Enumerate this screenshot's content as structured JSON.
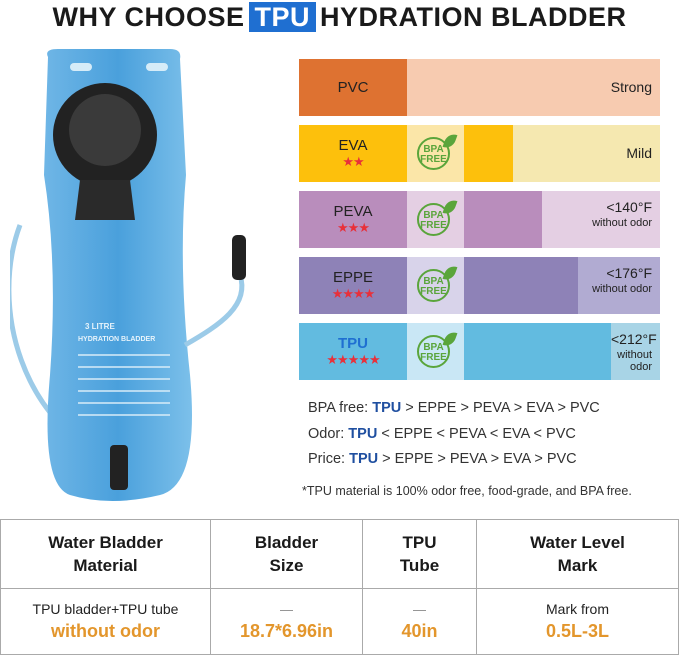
{
  "title": {
    "before": "WHY CHOOSE",
    "highlight": "TPU",
    "after": "HYDRATION BLADDER"
  },
  "product": {
    "label_line1": "3 LITRE",
    "label_line2": "HYDRATION BLADDER"
  },
  "colors": {
    "accent": "#1f6fd1",
    "star": "#e8303a",
    "bpa_green": "#5aa53b",
    "orange": "#e3962c"
  },
  "materials": [
    {
      "name": "PVC",
      "stars": "",
      "bpa_free": false,
      "value": "Strong",
      "subvalue": "",
      "dark": "#de7231",
      "light": "#f7cbb0",
      "mid": "#f7cbb0",
      "level": 0
    },
    {
      "name": "EVA",
      "stars": "★★",
      "bpa_free": true,
      "bpa_text1": "BPA",
      "bpa_text2": "FREE",
      "value": "Mild",
      "subvalue": "",
      "dark": "#fdc00c",
      "light": "#f5e8b0",
      "mid": "#fbe6a8",
      "level": 25
    },
    {
      "name": "PEVA",
      "stars": "★★★",
      "bpa_free": true,
      "bpa_text1": "BPA",
      "bpa_text2": "FREE",
      "value": "<140°F",
      "subvalue": "without odor",
      "dark": "#b98dbc",
      "light": "#e4cfe3",
      "mid": "#e4cfe3",
      "level": 40
    },
    {
      "name": "EPPE",
      "stars": "★★★★",
      "bpa_free": true,
      "bpa_text1": "BPA",
      "bpa_text2": "FREE",
      "value": "<176°F",
      "subvalue": "without odor",
      "dark": "#8e82b7",
      "light": "#b1abd2",
      "mid": "#d8d3ea",
      "level": 58
    },
    {
      "name": "TPU",
      "stars": "★★★★★",
      "bpa_free": true,
      "bpa_text1": "BPA",
      "bpa_text2": "FREE",
      "value": "<212°F",
      "subvalue": "without odor",
      "dark": "#62bbe0",
      "light": "#a8d4e6",
      "mid": "#c9e7f5",
      "level": 75
    }
  ],
  "comparisons": [
    {
      "label": "BPA free:",
      "best": "TPU",
      "rest": " > EPPE > PEVA > EVA > PVC"
    },
    {
      "label": "Odor:",
      "best": "TPU",
      "rest": " < EPPE < PEVA < EVA < PVC"
    },
    {
      "label": "Price:",
      "best": "TPU",
      "rest": " > EPPE > PEVA > EVA  > PVC"
    }
  ],
  "note": "*TPU material is 100% odor free, food-grade, and BPA free.",
  "table": {
    "headers": [
      [
        "Water Bladder",
        "Material"
      ],
      [
        "Bladder",
        "Size"
      ],
      [
        "TPU",
        "Tube"
      ],
      [
        "Water Level",
        "Mark"
      ]
    ],
    "cells": [
      {
        "top": "TPU bladder+TPU tube",
        "bottom": "without odor"
      },
      {
        "top": "—",
        "bottom": "18.7*6.96in"
      },
      {
        "top": "—",
        "bottom": "40in"
      },
      {
        "top": "Mark from",
        "bottom": "0.5L-3L"
      }
    ]
  }
}
